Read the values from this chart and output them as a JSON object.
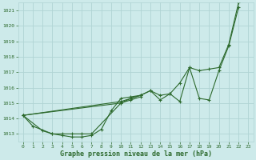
{
  "title": "",
  "xlabel": "Graphe pression niveau de la mer (hPa)",
  "ylabel": "",
  "bg_color": "#cdeaea",
  "line_color": "#2d6a2d",
  "grid_color": "#b0d4d4",
  "xlim": [
    -0.5,
    23.5
  ],
  "ylim": [
    1012.5,
    1021.5
  ],
  "yticks": [
    1013,
    1014,
    1015,
    1016,
    1017,
    1018,
    1019,
    1020,
    1021
  ],
  "xticks": [
    0,
    1,
    2,
    3,
    4,
    5,
    6,
    7,
    8,
    9,
    10,
    11,
    12,
    13,
    14,
    15,
    16,
    17,
    18,
    19,
    20,
    21,
    22,
    23
  ],
  "series": [
    {
      "x": [
        0,
        1,
        3,
        4,
        5,
        6,
        7,
        8,
        9,
        10,
        11,
        12,
        13,
        14,
        15,
        16,
        17,
        18,
        19,
        20,
        21,
        22
      ],
      "y": [
        1014.2,
        1013.5,
        1013.0,
        1012.9,
        1012.8,
        1012.8,
        1012.9,
        1013.3,
        1014.5,
        1015.3,
        1015.4,
        1015.5,
        1015.8,
        1015.2,
        1015.6,
        1015.1,
        1017.3,
        1015.3,
        1015.2,
        1017.1,
        1018.7,
        1021.2
      ]
    },
    {
      "x": [
        0,
        2,
        3,
        4,
        5,
        6,
        7,
        10,
        11,
        12
      ],
      "y": [
        1014.2,
        1013.2,
        1013.0,
        1013.0,
        1013.0,
        1013.0,
        1013.0,
        1015.0,
        1015.2,
        1015.4
      ]
    },
    {
      "x": [
        0,
        10,
        11,
        12,
        13,
        14,
        15,
        16,
        17,
        18,
        19,
        20,
        21,
        22
      ],
      "y": [
        1014.2,
        1015.0,
        1015.3,
        1015.5,
        1015.8,
        1015.5,
        1015.6,
        1016.3,
        1017.3,
        1017.1,
        1017.2,
        1017.3,
        1018.8,
        1021.5
      ]
    },
    {
      "x": [
        0,
        10,
        11,
        12
      ],
      "y": [
        1014.2,
        1015.1,
        1015.3,
        1015.5
      ]
    }
  ]
}
